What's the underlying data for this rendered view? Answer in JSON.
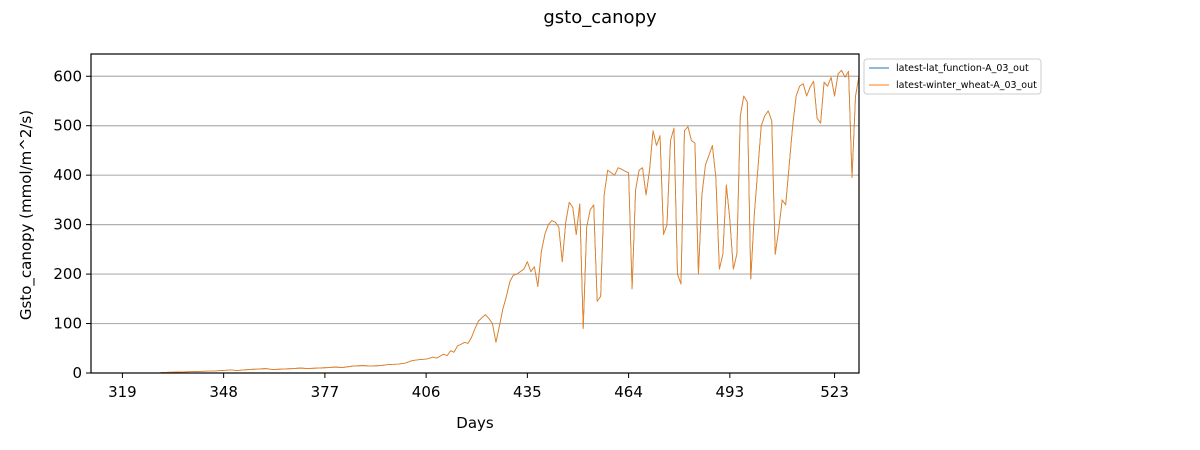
{
  "chart_data": {
    "type": "line",
    "title": "gsto_canopy",
    "xlabel": "Days",
    "ylabel": "Gsto_canopy (mmol/m^2/s)",
    "xlim": [
      310,
      530
    ],
    "ylim": [
      0,
      645
    ],
    "x_ticks": [
      319,
      348,
      377,
      406,
      435,
      464,
      493,
      523
    ],
    "y_ticks": [
      0,
      100,
      200,
      300,
      400,
      500,
      600
    ],
    "grid": "horizontal",
    "legend_position": "outside-top-right",
    "series": [
      {
        "name": "latest-lat_function-A_03_out",
        "color": "#1f77b4",
        "points": [
          [
            330,
            1
          ],
          [
            335,
            2
          ],
          [
            340,
            3
          ],
          [
            345,
            4
          ],
          [
            350,
            6
          ],
          [
            352,
            5
          ],
          [
            355,
            7
          ],
          [
            358,
            8
          ],
          [
            360,
            9
          ],
          [
            362,
            7
          ],
          [
            365,
            8
          ],
          [
            368,
            9
          ],
          [
            370,
            10
          ],
          [
            372,
            9
          ],
          [
            375,
            10
          ],
          [
            378,
            11
          ],
          [
            380,
            12
          ],
          [
            382,
            11
          ],
          [
            385,
            14
          ],
          [
            388,
            15
          ],
          [
            390,
            14
          ],
          [
            393,
            15
          ],
          [
            395,
            17
          ],
          [
            398,
            18
          ],
          [
            400,
            20
          ],
          [
            402,
            25
          ],
          [
            404,
            27
          ],
          [
            406,
            28
          ],
          [
            407,
            30
          ],
          [
            408,
            32
          ],
          [
            409,
            30
          ],
          [
            410,
            34
          ],
          [
            411,
            38
          ],
          [
            412,
            35
          ],
          [
            413,
            45
          ],
          [
            414,
            42
          ],
          [
            415,
            55
          ],
          [
            416,
            58
          ],
          [
            417,
            62
          ],
          [
            418,
            60
          ],
          [
            419,
            72
          ],
          [
            420,
            90
          ],
          [
            421,
            105
          ],
          [
            422,
            112
          ],
          [
            423,
            118
          ],
          [
            424,
            110
          ],
          [
            425,
            100
          ],
          [
            426,
            62
          ],
          [
            427,
            95
          ],
          [
            428,
            130
          ],
          [
            429,
            155
          ],
          [
            430,
            185
          ],
          [
            431,
            198
          ],
          [
            432,
            200
          ],
          [
            433,
            205
          ],
          [
            434,
            210
          ],
          [
            435,
            225
          ],
          [
            436,
            205
          ],
          [
            437,
            215
          ],
          [
            438,
            175
          ],
          [
            439,
            245
          ],
          [
            440,
            280
          ],
          [
            441,
            300
          ],
          [
            442,
            308
          ],
          [
            443,
            305
          ],
          [
            444,
            295
          ],
          [
            445,
            225
          ],
          [
            446,
            305
          ],
          [
            447,
            345
          ],
          [
            448,
            335
          ],
          [
            449,
            280
          ],
          [
            450,
            342
          ],
          [
            451,
            90
          ],
          [
            452,
            295
          ],
          [
            453,
            330
          ],
          [
            454,
            340
          ],
          [
            455,
            145
          ],
          [
            456,
            155
          ],
          [
            457,
            360
          ],
          [
            458,
            410
          ],
          [
            459,
            405
          ],
          [
            460,
            400
          ],
          [
            461,
            415
          ],
          [
            462,
            412
          ],
          [
            463,
            408
          ],
          [
            464,
            405
          ],
          [
            465,
            170
          ],
          [
            466,
            370
          ],
          [
            467,
            410
          ],
          [
            468,
            415
          ],
          [
            469,
            360
          ],
          [
            470,
            410
          ],
          [
            471,
            490
          ],
          [
            472,
            460
          ],
          [
            473,
            480
          ],
          [
            474,
            280
          ],
          [
            475,
            300
          ],
          [
            476,
            470
          ],
          [
            477,
            495
          ],
          [
            478,
            200
          ],
          [
            479,
            180
          ],
          [
            480,
            490
          ],
          [
            481,
            498
          ],
          [
            482,
            470
          ],
          [
            483,
            465
          ],
          [
            484,
            200
          ],
          [
            485,
            360
          ],
          [
            486,
            420
          ],
          [
            487,
            440
          ],
          [
            488,
            460
          ],
          [
            489,
            395
          ],
          [
            490,
            210
          ],
          [
            491,
            240
          ],
          [
            492,
            380
          ],
          [
            493,
            310
          ],
          [
            494,
            210
          ],
          [
            495,
            240
          ],
          [
            496,
            520
          ],
          [
            497,
            560
          ],
          [
            498,
            548
          ],
          [
            499,
            190
          ],
          [
            500,
            320
          ],
          [
            501,
            410
          ],
          [
            502,
            500
          ],
          [
            503,
            520
          ],
          [
            504,
            530
          ],
          [
            505,
            510
          ],
          [
            506,
            240
          ],
          [
            507,
            290
          ],
          [
            508,
            350
          ],
          [
            509,
            340
          ],
          [
            510,
            420
          ],
          [
            511,
            500
          ],
          [
            512,
            560
          ],
          [
            513,
            580
          ],
          [
            514,
            585
          ],
          [
            515,
            560
          ],
          [
            516,
            578
          ],
          [
            517,
            590
          ],
          [
            518,
            515
          ],
          [
            519,
            505
          ],
          [
            520,
            588
          ],
          [
            521,
            580
          ],
          [
            522,
            598
          ],
          [
            523,
            560
          ],
          [
            524,
            605
          ],
          [
            525,
            612
          ],
          [
            526,
            598
          ],
          [
            527,
            610
          ],
          [
            528,
            395
          ],
          [
            529,
            560
          ],
          [
            530,
            600
          ]
        ]
      },
      {
        "name": "latest-winter_wheat-A_03_out",
        "color": "#ff7f0e",
        "points": []
      }
    ]
  }
}
